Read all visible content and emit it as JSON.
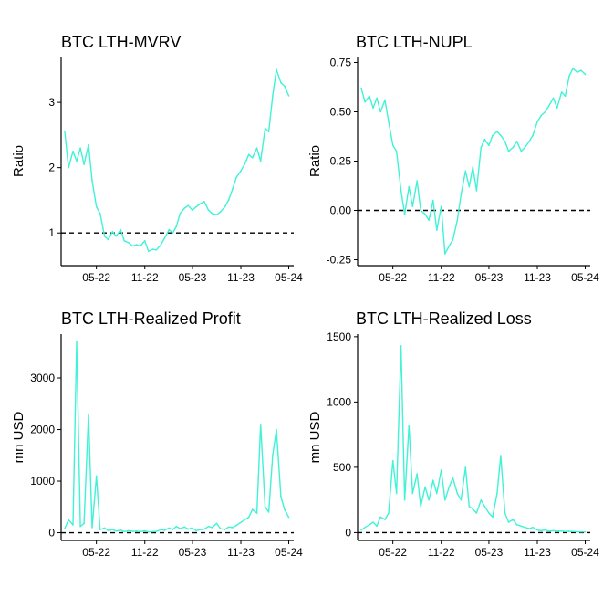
{
  "chart_data": [
    {
      "type": "line",
      "title": "BTC LTH-MVRV",
      "ylabel": "Ratio",
      "xlabel": "",
      "x_ticks": [
        "05-22",
        "11-22",
        "05-23",
        "11-23",
        "05-24"
      ],
      "y_ticks": [
        "1",
        "2",
        "3"
      ],
      "ylim": [
        0.5,
        3.7
      ],
      "reference_line": 1,
      "series": [
        {
          "x": [
            "2022-01-01",
            "2022-01-15",
            "2022-02-01",
            "2022-02-15",
            "2022-03-01",
            "2022-03-15",
            "2022-04-01",
            "2022-04-15",
            "2022-05-01",
            "2022-05-15",
            "2022-06-01",
            "2022-06-15",
            "2022-07-01",
            "2022-07-15",
            "2022-08-01",
            "2022-08-15",
            "2022-09-01",
            "2022-09-15",
            "2022-10-01",
            "2022-10-15",
            "2022-11-01",
            "2022-11-15",
            "2022-12-01",
            "2022-12-15",
            "2023-01-01",
            "2023-01-15",
            "2023-02-01",
            "2023-02-15",
            "2023-03-01",
            "2023-03-15",
            "2023-04-01",
            "2023-04-15",
            "2023-05-01",
            "2023-05-15",
            "2023-06-01",
            "2023-06-15",
            "2023-07-01",
            "2023-07-15",
            "2023-08-01",
            "2023-08-15",
            "2023-09-01",
            "2023-09-15",
            "2023-10-01",
            "2023-10-15",
            "2023-11-01",
            "2023-11-15",
            "2023-12-01",
            "2023-12-15",
            "2024-01-01",
            "2024-01-15",
            "2024-02-01",
            "2024-02-15",
            "2024-03-01",
            "2024-03-15",
            "2024-04-01",
            "2024-04-15",
            "2024-05-01"
          ],
          "values": [
            2.55,
            2.0,
            2.25,
            2.1,
            2.3,
            2.05,
            2.35,
            1.8,
            1.4,
            1.3,
            0.95,
            0.9,
            1.02,
            0.95,
            1.05,
            0.88,
            0.85,
            0.8,
            0.82,
            0.8,
            0.88,
            0.72,
            0.75,
            0.74,
            0.82,
            0.92,
            1.05,
            1.0,
            1.1,
            1.3,
            1.38,
            1.42,
            1.35,
            1.4,
            1.45,
            1.48,
            1.35,
            1.3,
            1.28,
            1.32,
            1.4,
            1.5,
            1.68,
            1.85,
            1.95,
            2.05,
            2.2,
            2.15,
            2.3,
            2.1,
            2.6,
            2.55,
            3.1,
            3.5,
            3.3,
            3.25,
            3.1
          ]
        }
      ]
    },
    {
      "type": "line",
      "title": "BTC LTH-NUPL",
      "ylabel": "Ratio",
      "xlabel": "",
      "x_ticks": [
        "05-22",
        "11-22",
        "05-23",
        "11-23",
        "05-24"
      ],
      "y_ticks": [
        "-0.25",
        "0.00",
        "0.25",
        "0.50",
        "0.75"
      ],
      "ylim": [
        -0.28,
        0.78
      ],
      "reference_line": 0,
      "series": [
        {
          "x": [
            "2022-01-01",
            "2022-01-15",
            "2022-02-01",
            "2022-02-15",
            "2022-03-01",
            "2022-03-15",
            "2022-04-01",
            "2022-04-15",
            "2022-05-01",
            "2022-05-15",
            "2022-06-01",
            "2022-06-15",
            "2022-07-01",
            "2022-07-15",
            "2022-08-01",
            "2022-08-15",
            "2022-09-01",
            "2022-09-15",
            "2022-10-01",
            "2022-10-15",
            "2022-11-01",
            "2022-11-15",
            "2022-12-01",
            "2022-12-15",
            "2023-01-01",
            "2023-01-15",
            "2023-02-01",
            "2023-02-15",
            "2023-03-01",
            "2023-03-15",
            "2023-04-01",
            "2023-04-15",
            "2023-05-01",
            "2023-05-15",
            "2023-06-01",
            "2023-06-15",
            "2023-07-01",
            "2023-07-15",
            "2023-08-01",
            "2023-08-15",
            "2023-09-01",
            "2023-09-15",
            "2023-10-01",
            "2023-10-15",
            "2023-11-01",
            "2023-11-15",
            "2023-12-01",
            "2023-12-15",
            "2024-01-01",
            "2024-01-15",
            "2024-02-01",
            "2024-02-15",
            "2024-03-01",
            "2024-03-15",
            "2024-04-01",
            "2024-04-15",
            "2024-05-01"
          ],
          "values": [
            0.62,
            0.55,
            0.58,
            0.52,
            0.57,
            0.5,
            0.56,
            0.45,
            0.33,
            0.3,
            0.1,
            -0.02,
            0.12,
            0.02,
            0.15,
            0.0,
            -0.02,
            -0.05,
            0.05,
            -0.1,
            0.02,
            -0.22,
            -0.18,
            -0.15,
            -0.05,
            0.08,
            0.2,
            0.12,
            0.22,
            0.1,
            0.32,
            0.36,
            0.33,
            0.38,
            0.4,
            0.38,
            0.35,
            0.3,
            0.32,
            0.35,
            0.3,
            0.32,
            0.35,
            0.38,
            0.45,
            0.48,
            0.5,
            0.53,
            0.57,
            0.52,
            0.6,
            0.58,
            0.68,
            0.72,
            0.7,
            0.71,
            0.69
          ]
        }
      ]
    },
    {
      "type": "line",
      "title": "BTC LTH-Realized Profit",
      "ylabel": "mn USD",
      "xlabel": "",
      "x_ticks": [
        "05-22",
        "11-22",
        "05-23",
        "11-23",
        "05-24"
      ],
      "y_ticks": [
        "0",
        "1000",
        "2000",
        "3000"
      ],
      "ylim": [
        -150,
        3850
      ],
      "reference_line": 0,
      "series": [
        {
          "x": [
            "2022-01-01",
            "2022-01-15",
            "2022-02-01",
            "2022-02-15",
            "2022-03-01",
            "2022-03-15",
            "2022-04-01",
            "2022-04-15",
            "2022-05-01",
            "2022-05-15",
            "2022-06-01",
            "2022-06-15",
            "2022-07-01",
            "2022-07-15",
            "2022-08-01",
            "2022-08-15",
            "2022-09-01",
            "2022-09-15",
            "2022-10-01",
            "2022-10-15",
            "2022-11-01",
            "2022-11-15",
            "2022-12-01",
            "2022-12-15",
            "2023-01-01",
            "2023-01-15",
            "2023-02-01",
            "2023-02-15",
            "2023-03-01",
            "2023-03-15",
            "2023-04-01",
            "2023-04-15",
            "2023-05-01",
            "2023-05-15",
            "2023-06-01",
            "2023-06-15",
            "2023-07-01",
            "2023-07-15",
            "2023-08-01",
            "2023-08-15",
            "2023-09-01",
            "2023-09-15",
            "2023-10-01",
            "2023-10-15",
            "2023-11-01",
            "2023-11-15",
            "2023-12-01",
            "2023-12-15",
            "2024-01-01",
            "2024-01-15",
            "2024-02-01",
            "2024-02-15",
            "2024-03-01",
            "2024-03-15",
            "2024-04-01",
            "2024-04-15",
            "2024-05-01"
          ],
          "values": [
            80,
            250,
            150,
            3700,
            120,
            180,
            2300,
            100,
            1100,
            60,
            90,
            40,
            60,
            30,
            50,
            20,
            40,
            25,
            30,
            20,
            35,
            15,
            20,
            25,
            60,
            45,
            90,
            60,
            120,
            80,
            110,
            70,
            90,
            40,
            60,
            70,
            120,
            100,
            180,
            80,
            60,
            110,
            100,
            140,
            200,
            250,
            300,
            450,
            380,
            2100,
            500,
            400,
            1500,
            2000,
            700,
            450,
            300
          ]
        }
      ]
    },
    {
      "type": "line",
      "title": "BTC LTH-Realized Loss",
      "ylabel": "mn USD",
      "xlabel": "",
      "x_ticks": [
        "05-22",
        "11-22",
        "05-23",
        "11-23",
        "05-24"
      ],
      "y_ticks": [
        "0",
        "500",
        "1000",
        "1500"
      ],
      "ylim": [
        -60,
        1520
      ],
      "reference_line": 0,
      "series": [
        {
          "x": [
            "2022-01-01",
            "2022-01-15",
            "2022-02-01",
            "2022-02-15",
            "2022-03-01",
            "2022-03-15",
            "2022-04-01",
            "2022-04-15",
            "2022-05-01",
            "2022-05-15",
            "2022-06-01",
            "2022-06-15",
            "2022-07-01",
            "2022-07-15",
            "2022-08-01",
            "2022-08-15",
            "2022-09-01",
            "2022-09-15",
            "2022-10-01",
            "2022-10-15",
            "2022-11-01",
            "2022-11-15",
            "2022-12-01",
            "2022-12-15",
            "2023-01-01",
            "2023-01-15",
            "2023-02-01",
            "2023-02-15",
            "2023-03-01",
            "2023-03-15",
            "2023-04-01",
            "2023-04-15",
            "2023-05-01",
            "2023-05-15",
            "2023-06-01",
            "2023-06-15",
            "2023-07-01",
            "2023-07-15",
            "2023-08-01",
            "2023-08-15",
            "2023-09-01",
            "2023-09-15",
            "2023-10-01",
            "2023-10-15",
            "2023-11-01",
            "2023-11-15",
            "2023-12-01",
            "2023-12-15",
            "2024-01-01",
            "2024-01-15",
            "2024-02-01",
            "2024-02-15",
            "2024-03-01",
            "2024-03-15",
            "2024-04-01",
            "2024-04-15",
            "2024-05-01"
          ],
          "values": [
            20,
            40,
            60,
            80,
            50,
            120,
            100,
            150,
            550,
            300,
            1430,
            250,
            820,
            300,
            450,
            200,
            350,
            250,
            400,
            300,
            480,
            250,
            350,
            420,
            300,
            250,
            500,
            200,
            180,
            150,
            250,
            200,
            150,
            120,
            300,
            590,
            150,
            80,
            100,
            60,
            50,
            40,
            30,
            40,
            20,
            15,
            20,
            10,
            15,
            10,
            12,
            8,
            10,
            8,
            6,
            5,
            5
          ]
        }
      ]
    }
  ],
  "style": {
    "line_color": "#40f2d6",
    "reference_line_color": "#000000"
  }
}
